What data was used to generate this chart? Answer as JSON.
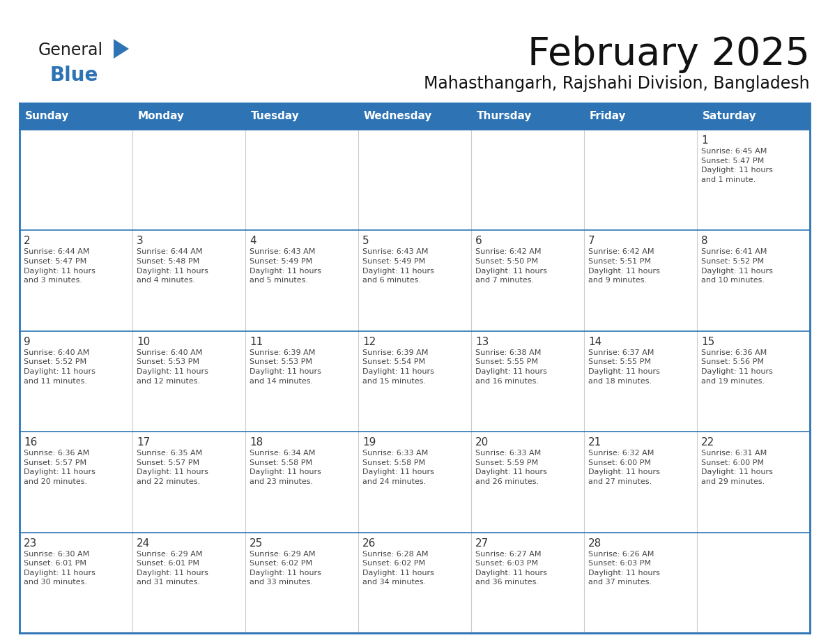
{
  "title": "February 2025",
  "subtitle": "Mahasthangarh, Rajshahi Division, Bangladesh",
  "header_bg": "#2E74B5",
  "header_text_color": "#FFFFFF",
  "cell_bg": "#FFFFFF",
  "border_color": "#2E74B5",
  "row_line_color": "#2E74B5",
  "col_line_color": "#CCCCCC",
  "title_color": "#111111",
  "subtitle_color": "#111111",
  "text_color": "#444444",
  "day_num_color": "#333333",
  "days_of_week": [
    "Sunday",
    "Monday",
    "Tuesday",
    "Wednesday",
    "Thursday",
    "Friday",
    "Saturday"
  ],
  "weeks": [
    [
      {
        "day": "",
        "info": ""
      },
      {
        "day": "",
        "info": ""
      },
      {
        "day": "",
        "info": ""
      },
      {
        "day": "",
        "info": ""
      },
      {
        "day": "",
        "info": ""
      },
      {
        "day": "",
        "info": ""
      },
      {
        "day": "1",
        "info": "Sunrise: 6:45 AM\nSunset: 5:47 PM\nDaylight: 11 hours\nand 1 minute."
      }
    ],
    [
      {
        "day": "2",
        "info": "Sunrise: 6:44 AM\nSunset: 5:47 PM\nDaylight: 11 hours\nand 3 minutes."
      },
      {
        "day": "3",
        "info": "Sunrise: 6:44 AM\nSunset: 5:48 PM\nDaylight: 11 hours\nand 4 minutes."
      },
      {
        "day": "4",
        "info": "Sunrise: 6:43 AM\nSunset: 5:49 PM\nDaylight: 11 hours\nand 5 minutes."
      },
      {
        "day": "5",
        "info": "Sunrise: 6:43 AM\nSunset: 5:49 PM\nDaylight: 11 hours\nand 6 minutes."
      },
      {
        "day": "6",
        "info": "Sunrise: 6:42 AM\nSunset: 5:50 PM\nDaylight: 11 hours\nand 7 minutes."
      },
      {
        "day": "7",
        "info": "Sunrise: 6:42 AM\nSunset: 5:51 PM\nDaylight: 11 hours\nand 9 minutes."
      },
      {
        "day": "8",
        "info": "Sunrise: 6:41 AM\nSunset: 5:52 PM\nDaylight: 11 hours\nand 10 minutes."
      }
    ],
    [
      {
        "day": "9",
        "info": "Sunrise: 6:40 AM\nSunset: 5:52 PM\nDaylight: 11 hours\nand 11 minutes."
      },
      {
        "day": "10",
        "info": "Sunrise: 6:40 AM\nSunset: 5:53 PM\nDaylight: 11 hours\nand 12 minutes."
      },
      {
        "day": "11",
        "info": "Sunrise: 6:39 AM\nSunset: 5:53 PM\nDaylight: 11 hours\nand 14 minutes."
      },
      {
        "day": "12",
        "info": "Sunrise: 6:39 AM\nSunset: 5:54 PM\nDaylight: 11 hours\nand 15 minutes."
      },
      {
        "day": "13",
        "info": "Sunrise: 6:38 AM\nSunset: 5:55 PM\nDaylight: 11 hours\nand 16 minutes."
      },
      {
        "day": "14",
        "info": "Sunrise: 6:37 AM\nSunset: 5:55 PM\nDaylight: 11 hours\nand 18 minutes."
      },
      {
        "day": "15",
        "info": "Sunrise: 6:36 AM\nSunset: 5:56 PM\nDaylight: 11 hours\nand 19 minutes."
      }
    ],
    [
      {
        "day": "16",
        "info": "Sunrise: 6:36 AM\nSunset: 5:57 PM\nDaylight: 11 hours\nand 20 minutes."
      },
      {
        "day": "17",
        "info": "Sunrise: 6:35 AM\nSunset: 5:57 PM\nDaylight: 11 hours\nand 22 minutes."
      },
      {
        "day": "18",
        "info": "Sunrise: 6:34 AM\nSunset: 5:58 PM\nDaylight: 11 hours\nand 23 minutes."
      },
      {
        "day": "19",
        "info": "Sunrise: 6:33 AM\nSunset: 5:58 PM\nDaylight: 11 hours\nand 24 minutes."
      },
      {
        "day": "20",
        "info": "Sunrise: 6:33 AM\nSunset: 5:59 PM\nDaylight: 11 hours\nand 26 minutes."
      },
      {
        "day": "21",
        "info": "Sunrise: 6:32 AM\nSunset: 6:00 PM\nDaylight: 11 hours\nand 27 minutes."
      },
      {
        "day": "22",
        "info": "Sunrise: 6:31 AM\nSunset: 6:00 PM\nDaylight: 11 hours\nand 29 minutes."
      }
    ],
    [
      {
        "day": "23",
        "info": "Sunrise: 6:30 AM\nSunset: 6:01 PM\nDaylight: 11 hours\nand 30 minutes."
      },
      {
        "day": "24",
        "info": "Sunrise: 6:29 AM\nSunset: 6:01 PM\nDaylight: 11 hours\nand 31 minutes."
      },
      {
        "day": "25",
        "info": "Sunrise: 6:29 AM\nSunset: 6:02 PM\nDaylight: 11 hours\nand 33 minutes."
      },
      {
        "day": "26",
        "info": "Sunrise: 6:28 AM\nSunset: 6:02 PM\nDaylight: 11 hours\nand 34 minutes."
      },
      {
        "day": "27",
        "info": "Sunrise: 6:27 AM\nSunset: 6:03 PM\nDaylight: 11 hours\nand 36 minutes."
      },
      {
        "day": "28",
        "info": "Sunrise: 6:26 AM\nSunset: 6:03 PM\nDaylight: 11 hours\nand 37 minutes."
      },
      {
        "day": "",
        "info": ""
      }
    ]
  ],
  "logo_general_color": "#1A1A1A",
  "logo_blue_color": "#2E74B5"
}
